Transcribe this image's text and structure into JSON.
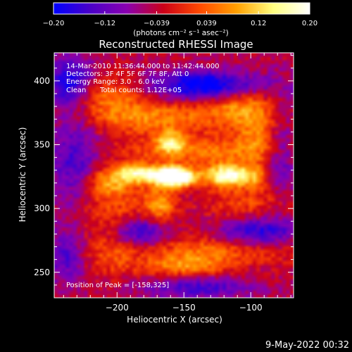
{
  "colorbar": {
    "ticks": [
      "-0.20",
      "-0.12",
      "-0.039",
      "0.039",
      "0.12",
      "0.20"
    ],
    "tick_values": [
      -0.2,
      -0.12,
      -0.039,
      0.039,
      0.12,
      0.2
    ],
    "range": [
      -0.2,
      0.2
    ],
    "unit": "(photons cm⁻² s⁻¹ asec⁻²)",
    "colors": [
      "#0000ff",
      "#4a00c8",
      "#8a00b0",
      "#cc0018",
      "#ff4a00",
      "#ffa000",
      "#ffff80",
      "#ffffff"
    ]
  },
  "image": {
    "title": "Reconstructed RHESSI Image",
    "info_lines": [
      "14-Mar-2010 11:36:44.000 to 11:42:44.000",
      "Detectors: 3F 4F 5F 6F 7F 8F, Att 0",
      "Energy Range: 3.0 - 6.0 keV"
    ],
    "clean_label": "Clean",
    "total_counts": "Total counts: 1.12E+05",
    "peak_label": "Position of Peak = [-158,325]"
  },
  "footer": {
    "timestamp": "9-May-2022 00:32"
  },
  "chart_data": {
    "type": "heatmap",
    "title": "Reconstructed RHESSI Image",
    "xlabel": "Heliocentric X (arcsec)",
    "ylabel": "Heliocentric Y (arcsec)",
    "xlim": [
      -247,
      -68
    ],
    "ylim": [
      230,
      422
    ],
    "x_ticks": [
      -200,
      -150,
      -100
    ],
    "x_tick_labels": [
      "−200",
      "−150",
      "−100"
    ],
    "y_ticks": [
      250,
      300,
      350,
      400
    ],
    "y_tick_labels": [
      "250",
      "300",
      "350",
      "400"
    ],
    "peak": [
      -158,
      325
    ],
    "value_range": [
      -0.2,
      0.2
    ],
    "blobs": [
      {
        "x": -158,
        "y": 325,
        "sx": 11,
        "sy": 5,
        "v": 0.42
      },
      {
        "x": -185,
        "y": 328,
        "sx": 10,
        "sy": 5,
        "v": 0.17
      },
      {
        "x": -120,
        "y": 326,
        "sx": 10,
        "sy": 6,
        "v": 0.21
      },
      {
        "x": -205,
        "y": 322,
        "sx": 13,
        "sy": 8,
        "v": 0.12
      },
      {
        "x": -100,
        "y": 326,
        "sx": 10,
        "sy": 6,
        "v": 0.12
      },
      {
        "x": -140,
        "y": 345,
        "sx": 40,
        "sy": 8,
        "v": 0.1
      },
      {
        "x": -175,
        "y": 372,
        "sx": 40,
        "sy": 10,
        "v": 0.11
      },
      {
        "x": -210,
        "y": 390,
        "sx": 20,
        "sy": 10,
        "v": 0.09
      },
      {
        "x": -112,
        "y": 385,
        "sx": 16,
        "sy": 12,
        "v": 0.1
      },
      {
        "x": -95,
        "y": 362,
        "sx": 12,
        "sy": 18,
        "v": 0.09
      },
      {
        "x": -160,
        "y": 352,
        "sx": 7,
        "sy": 6,
        "v": 0.14
      },
      {
        "x": -168,
        "y": 303,
        "sx": 9,
        "sy": 10,
        "v": 0.12
      },
      {
        "x": -205,
        "y": 300,
        "sx": 18,
        "sy": 16,
        "v": 0.07
      },
      {
        "x": -100,
        "y": 300,
        "sx": 24,
        "sy": 14,
        "v": 0.08
      },
      {
        "x": -120,
        "y": 268,
        "sx": 42,
        "sy": 8,
        "v": 0.1
      },
      {
        "x": -150,
        "y": 255,
        "sx": 22,
        "sy": 6,
        "v": 0.11
      },
      {
        "x": -205,
        "y": 262,
        "sx": 14,
        "sy": 12,
        "v": 0.06
      },
      {
        "x": -130,
        "y": 396,
        "sx": 30,
        "sy": 8,
        "v": -0.2
      },
      {
        "x": -235,
        "y": 398,
        "sx": 12,
        "sy": 14,
        "v": -0.15
      },
      {
        "x": -232,
        "y": 338,
        "sx": 14,
        "sy": 26,
        "v": -0.1
      },
      {
        "x": -95,
        "y": 282,
        "sx": 22,
        "sy": 10,
        "v": -0.16
      },
      {
        "x": -182,
        "y": 282,
        "sx": 14,
        "sy": 8,
        "v": -0.13
      },
      {
        "x": -140,
        "y": 238,
        "sx": 28,
        "sy": 6,
        "v": -0.1
      },
      {
        "x": -78,
        "y": 338,
        "sx": 8,
        "sy": 24,
        "v": -0.08
      },
      {
        "x": -238,
        "y": 262,
        "sx": 10,
        "sy": 14,
        "v": -0.09
      }
    ]
  }
}
